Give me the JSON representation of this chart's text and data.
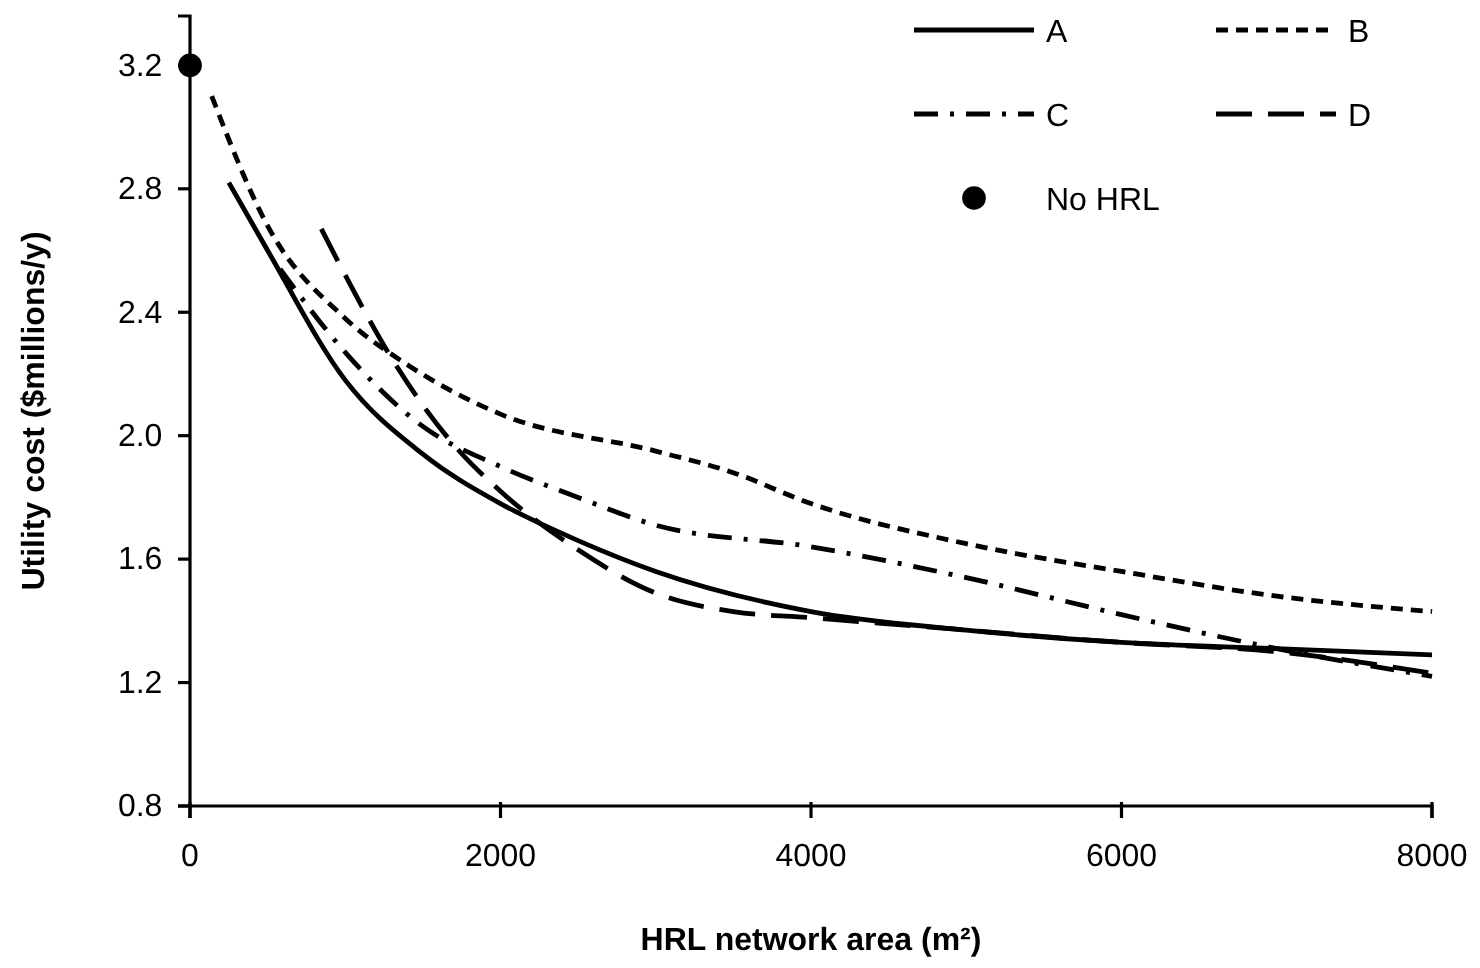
{
  "chart_data": {
    "type": "line",
    "xlabel": "HRL network area (m²)",
    "ylabel": "Utility cost ($millions/y)",
    "xlim": [
      0,
      8000
    ],
    "xticks": [
      0,
      2000,
      4000,
      6000,
      8000
    ],
    "ylim": [
      0.8,
      3.36
    ],
    "yticks": [
      {
        "value": 0.8,
        "label": "0.8"
      },
      {
        "value": 1.2,
        "label": "1.2"
      },
      {
        "value": 1.6,
        "label": "1.6"
      },
      {
        "value": 2,
        "label": "2.0"
      },
      {
        "value": 2.4,
        "label": "2.4"
      },
      {
        "value": 2.8,
        "label": "2.8"
      },
      {
        "value": 3.2,
        "label": "3.2"
      }
    ],
    "grid": false,
    "legend": "top right",
    "marker": "none",
    "series": [
      {
        "name": "A",
        "color": "#000000",
        "line_style": "solid",
        "x": [
          250,
          500,
          1000,
          1500,
          2000,
          2500,
          3000,
          4000,
          5000,
          6000,
          7000,
          8000
        ],
        "values": [
          2.82,
          2.6,
          2.18,
          1.94,
          1.78,
          1.66,
          1.56,
          1.43,
          1.37,
          1.33,
          1.31,
          1.29
        ]
      },
      {
        "name": "B",
        "color": "#000000",
        "line_style": "dashed",
        "x": [
          140,
          500,
          1000,
          1400,
          2000,
          3000,
          3500,
          4000,
          5000,
          6000,
          7000,
          8000
        ],
        "values": [
          3.1,
          2.68,
          2.38,
          2.23,
          2.07,
          1.95,
          1.88,
          1.78,
          1.65,
          1.56,
          1.48,
          1.43
        ]
      },
      {
        "name": "C",
        "color": "#000000",
        "line_style": "dashdot",
        "x": [
          580,
          1000,
          1500,
          2000,
          2500,
          3000,
          4000,
          5000,
          6000,
          7000,
          8000
        ],
        "values": [
          2.54,
          2.27,
          2.03,
          1.9,
          1.8,
          1.71,
          1.64,
          1.54,
          1.42,
          1.31,
          1.22
        ]
      },
      {
        "name": "D",
        "color": "#000000",
        "line_style": "longdash",
        "x": [
          846,
          1000,
          1300,
          1700,
          2000,
          2500,
          3000,
          3500,
          4000,
          5000,
          6000,
          7000,
          8000
        ],
        "values": [
          2.67,
          2.52,
          2.25,
          1.97,
          1.82,
          1.63,
          1.49,
          1.43,
          1.41,
          1.37,
          1.33,
          1.3,
          1.23
        ]
      },
      {
        "name": "No HRL",
        "type": "scatter",
        "marker": "circle",
        "color": "#000000",
        "x": [
          0
        ],
        "values": [
          3.2
        ]
      }
    ]
  }
}
